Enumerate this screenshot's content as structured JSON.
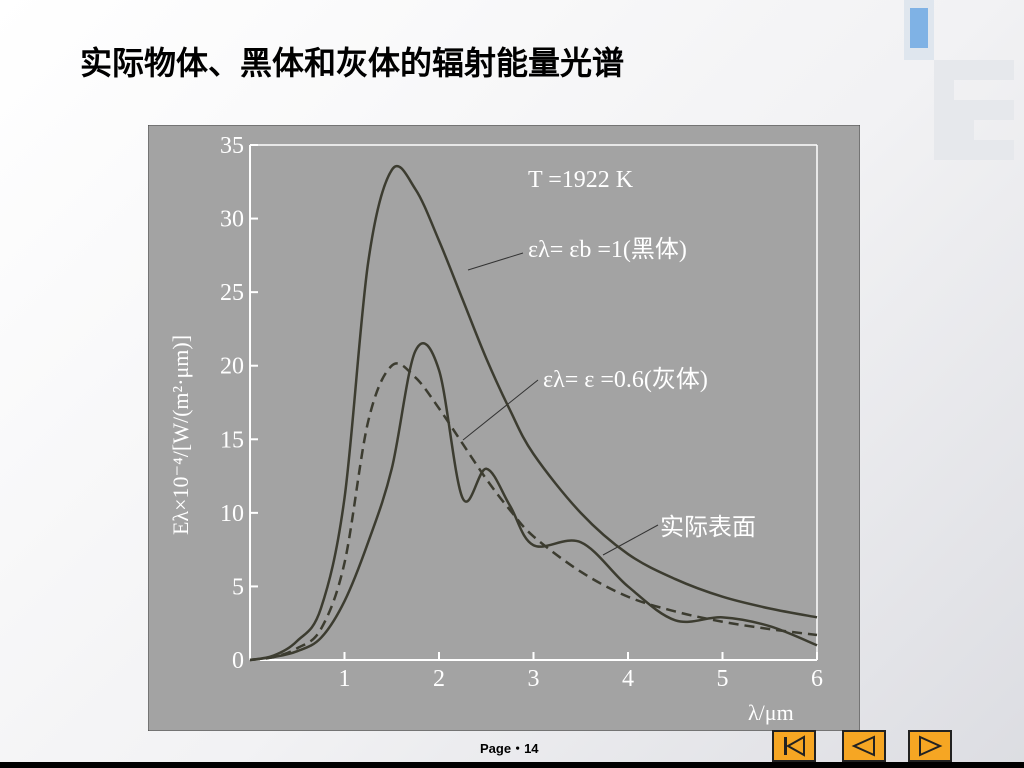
{
  "slide": {
    "title": "实际物体、黑体和灰体的辐射能量光谱",
    "footer": "Page・14"
  },
  "chart_data": {
    "type": "line",
    "annotation": "T =1922 K",
    "x_label": "λ/μm",
    "y_label": "Eλ×10⁻⁴/[W/(m²·μm)]",
    "x": [
      0,
      0.25,
      0.5,
      0.75,
      1,
      1.25,
      1.5,
      1.75,
      2,
      2.25,
      2.5,
      2.75,
      3,
      3.5,
      4,
      4.5,
      5,
      5.5,
      6
    ],
    "series": [
      {
        "name": "ελ= εb =1(黑体)",
        "color": "#3c3c30",
        "dashed": false,
        "values": [
          0,
          0.3,
          1.3,
          3.5,
          11,
          27,
          33.3,
          32,
          28.5,
          24.5,
          20.5,
          17,
          14,
          10,
          7.2,
          5.5,
          4.3,
          3.5,
          2.9
        ]
      },
      {
        "name": "ελ= ε =0.6(灰体)",
        "color": "#3c3c30",
        "dashed": true,
        "values": [
          0,
          0.2,
          0.8,
          2.1,
          6.6,
          16.2,
          20,
          19.2,
          17.1,
          14.7,
          12.3,
          10.2,
          8.4,
          6,
          4.3,
          3.3,
          2.6,
          2.1,
          1.7
        ]
      },
      {
        "name": "实际表面",
        "color": "#3c3c30",
        "dashed": false,
        "values": [
          0,
          0.2,
          0.6,
          1.5,
          4,
          8,
          13,
          21,
          19.7,
          11,
          13,
          10.5,
          7.8,
          8,
          5,
          2.7,
          2.9,
          2.3,
          1
        ]
      }
    ],
    "xlim": [
      0,
      6
    ],
    "ylim": [
      0,
      35
    ],
    "xticks": [
      1,
      2,
      3,
      4,
      5,
      6
    ],
    "yticks": [
      0,
      5,
      10,
      15,
      20,
      25,
      30,
      35
    ]
  }
}
